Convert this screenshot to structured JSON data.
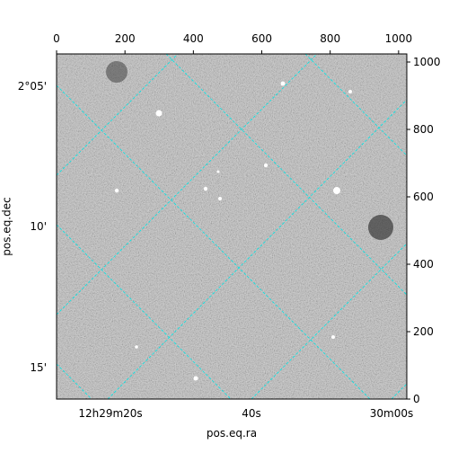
{
  "chart_data": {
    "type": "image",
    "xlabel": "pos.eq.ra",
    "ylabel": "pos.eq.dec",
    "xlim": [
      0,
      1024
    ],
    "ylim": [
      0,
      1024
    ],
    "xticks": [
      0,
      200,
      400,
      600,
      800,
      1000
    ],
    "yticks": [
      0,
      200,
      400,
      600,
      800,
      1000
    ],
    "ra_ticks": [
      "12h29m20s",
      "40s",
      "30m00s"
    ],
    "dec_ticks": [
      "2°05'",
      "10'",
      "15'"
    ],
    "grid": true,
    "grid_color": "#00e5e5"
  }
}
